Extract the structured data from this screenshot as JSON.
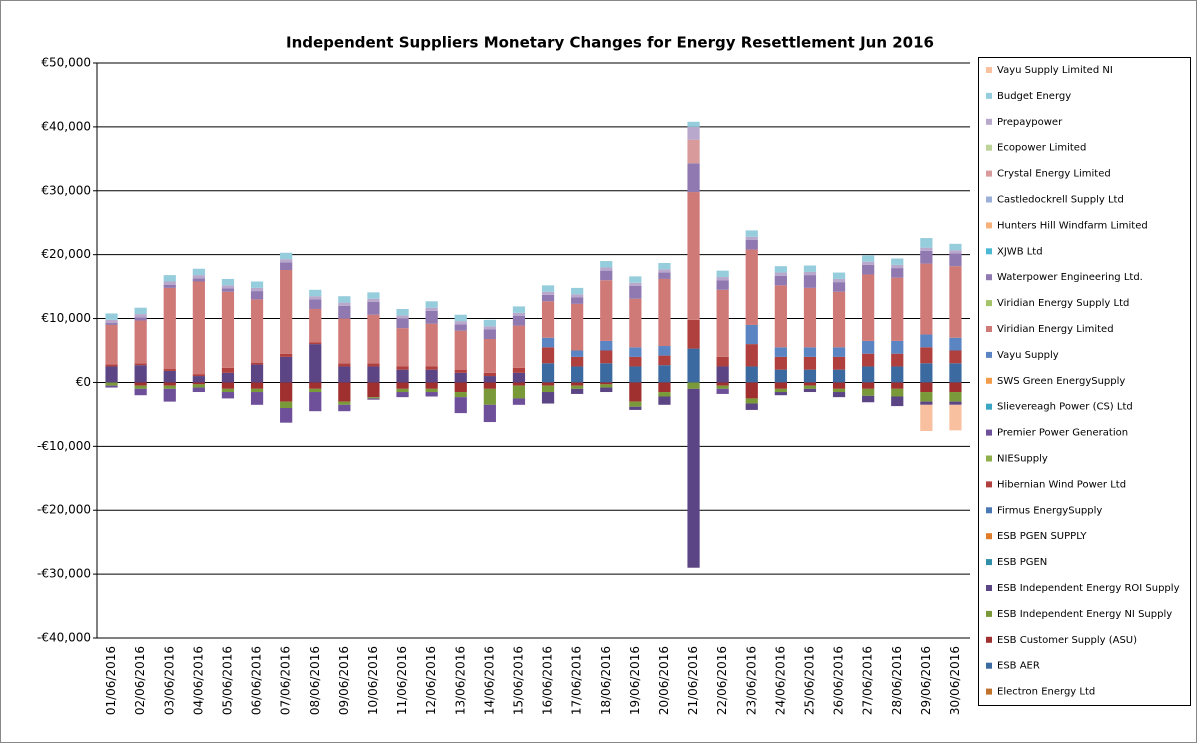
{
  "chart_data": {
    "type": "stacked_bar",
    "title": "Independent Suppliers Monetary Changes  for Energy Resettlement  Jun 2016",
    "categories": [
      "01/06/2016",
      "02/06/2016",
      "03/06/2016",
      "04/06/2016",
      "05/06/2016",
      "06/06/2016",
      "07/06/2016",
      "08/06/2016",
      "09/06/2016",
      "10/06/2016",
      "11/06/2016",
      "12/06/2016",
      "13/06/2016",
      "14/06/2016",
      "15/06/2016",
      "16/06/2016",
      "17/06/2016",
      "18/06/2016",
      "19/06/2016",
      "20/06/2016",
      "21/06/2016",
      "22/06/2016",
      "23/06/2016",
      "24/06/2016",
      "25/06/2016",
      "26/06/2016",
      "27/06/2016",
      "28/06/2016",
      "29/06/2016",
      "30/06/2016"
    ],
    "ylim": [
      -40000,
      50000
    ],
    "yticks": [
      {
        "value": -40000,
        "label": "-€40,000"
      },
      {
        "value": -30000,
        "label": "-€30,000"
      },
      {
        "value": -20000,
        "label": "-€20,000"
      },
      {
        "value": -10000,
        "label": "-€10,000"
      },
      {
        "value": 0,
        "label": "€0"
      },
      {
        "value": 10000,
        "label": "€10,000"
      },
      {
        "value": 20000,
        "label": "€20,000"
      },
      {
        "value": 30000,
        "label": "€30,000"
      },
      {
        "value": 40000,
        "label": "€40,000"
      },
      {
        "value": 50000,
        "label": "€50,000"
      }
    ],
    "grid": true,
    "legend": "right",
    "series": [
      {
        "name": "Electron Energy Ltd",
        "color": "#c0722b",
        "values": [
          0,
          0,
          0,
          0,
          0,
          0,
          0,
          0,
          0,
          0,
          0,
          0,
          0,
          0,
          0,
          0,
          0,
          0,
          0,
          0,
          0,
          0,
          0,
          0,
          0,
          0,
          0,
          0,
          0,
          0
        ]
      },
      {
        "name": "ESB AER",
        "color": "#3b6aa0",
        "values": [
          0,
          0,
          0,
          0,
          0,
          0,
          0,
          0,
          0,
          0,
          0,
          0,
          0,
          0,
          0,
          3000,
          2500,
          3000,
          2500,
          2700,
          5300,
          0,
          2500,
          2000,
          2000,
          2000,
          2500,
          2500,
          3000,
          3000
        ]
      },
      {
        "name": "ESB Customer Supply (ASU)",
        "color": "#a0302f",
        "values": [
          0,
          -500,
          -500,
          -300,
          -1000,
          -1000,
          -3000,
          -1000,
          -3000,
          -2300,
          -1000,
          -1000,
          -1500,
          -1000,
          -500,
          -500,
          -500,
          -300,
          -3000,
          -1500,
          0,
          -500,
          -2500,
          -1000,
          -500,
          -1000,
          -1000,
          -1000,
          -1500,
          -1500
        ]
      },
      {
        "name": "ESB Independent Energy NI Supply",
        "color": "#7a9a3a",
        "values": [
          -500,
          -500,
          -500,
          -500,
          -500,
          -500,
          -1000,
          -500,
          -500,
          -200,
          -500,
          -500,
          -800,
          -2500,
          -2000,
          -1000,
          -500,
          -500,
          -800,
          -700,
          -1000,
          -500,
          -800,
          -500,
          -500,
          -500,
          -1100,
          -1200,
          -1500,
          -1500
        ]
      },
      {
        "name": "ESB Independent Energy ROI Supply",
        "color": "#5b4585",
        "values": [
          2500,
          2700,
          1800,
          1000,
          1500,
          2800,
          4000,
          6000,
          2500,
          2500,
          2000,
          2000,
          1500,
          1000,
          1500,
          -1800,
          -800,
          -700,
          -500,
          -1300,
          -28000,
          2500,
          -1000,
          -500,
          -500,
          -800,
          -1000,
          -1500,
          -500,
          -500
        ]
      },
      {
        "name": "ESB PGEN",
        "color": "#2f8fa8",
        "values": [
          0,
          0,
          0,
          0,
          0,
          0,
          0,
          0,
          0,
          0,
          0,
          0,
          0,
          0,
          0,
          0,
          0,
          0,
          0,
          0,
          0,
          0,
          0,
          0,
          0,
          0,
          0,
          0,
          0,
          0
        ]
      },
      {
        "name": "ESB PGEN SUPPLY",
        "color": "#e07b27",
        "values": [
          0,
          0,
          0,
          0,
          0,
          0,
          0,
          0,
          0,
          0,
          0,
          0,
          0,
          0,
          0,
          0,
          0,
          0,
          0,
          0,
          0,
          0,
          0,
          0,
          0,
          0,
          0,
          0,
          0,
          0
        ]
      },
      {
        "name": "Firmus EnergySupply",
        "color": "#4a78b5",
        "values": [
          0,
          0,
          0,
          0,
          0,
          0,
          0,
          0,
          0,
          0,
          0,
          0,
          0,
          0,
          0,
          0,
          0,
          0,
          0,
          0,
          0,
          0,
          0,
          0,
          0,
          0,
          0,
          0,
          0,
          0
        ]
      },
      {
        "name": "Hibernian Wind Power Ltd",
        "color": "#b0403e",
        "values": [
          300,
          300,
          300,
          300,
          800,
          300,
          500,
          300,
          500,
          500,
          500,
          500,
          500,
          500,
          800,
          2500,
          1500,
          2000,
          1500,
          1500,
          4500,
          1500,
          3500,
          2000,
          2000,
          2000,
          2000,
          2000,
          2500,
          2000
        ]
      },
      {
        "name": "NIESupply",
        "color": "#8faf4a",
        "values": [
          0,
          0,
          0,
          0,
          0,
          0,
          0,
          0,
          0,
          0,
          0,
          0,
          0,
          0,
          0,
          0,
          0,
          0,
          0,
          0,
          0,
          0,
          0,
          0,
          0,
          0,
          0,
          0,
          0,
          0
        ]
      },
      {
        "name": "Premier Power Generation",
        "color": "#6e4f9a",
        "values": [
          -300,
          -1000,
          -2000,
          -700,
          -1000,
          -2000,
          -2300,
          -3000,
          -1000,
          -200,
          -800,
          -700,
          -2500,
          -2700,
          -1000,
          0,
          0,
          0,
          0,
          0,
          0,
          -800,
          0,
          0,
          0,
          0,
          0,
          0,
          0,
          0
        ]
      },
      {
        "name": "Slievereagh Power (CS) Ltd",
        "color": "#3aa6c4",
        "values": [
          0,
          0,
          0,
          0,
          0,
          0,
          0,
          0,
          0,
          0,
          0,
          0,
          0,
          0,
          0,
          0,
          0,
          0,
          0,
          0,
          0,
          0,
          0,
          0,
          0,
          0,
          0,
          0,
          0,
          0
        ]
      },
      {
        "name": "SWS Green EnergySupply",
        "color": "#f39c4a",
        "values": [
          0,
          0,
          0,
          0,
          0,
          0,
          0,
          0,
          0,
          0,
          0,
          0,
          0,
          0,
          0,
          0,
          0,
          0,
          0,
          0,
          0,
          0,
          0,
          0,
          0,
          0,
          0,
          0,
          0,
          0
        ]
      },
      {
        "name": "Vayu Supply",
        "color": "#5b84c2",
        "values": [
          0,
          0,
          0,
          0,
          0,
          0,
          0,
          0,
          0,
          0,
          0,
          0,
          0,
          0,
          0,
          1500,
          1000,
          1500,
          1500,
          1500,
          0,
          0,
          3000,
          1500,
          1500,
          1500,
          2000,
          2000,
          2000,
          2000
        ]
      },
      {
        "name": "Viridian Energy Limited",
        "color": "#d07a78",
        "values": [
          6200,
          6700,
          12700,
          14500,
          11900,
          9900,
          13100,
          5200,
          7000,
          7600,
          6000,
          6700,
          6100,
          5300,
          6600,
          5700,
          7300,
          9500,
          7600,
          10500,
          20000,
          10500,
          11800,
          9700,
          9300,
          8700,
          10400,
          9900,
          11100,
          11200
        ]
      },
      {
        "name": "Viridian Energy Supply Ltd",
        "color": "#a5c46a",
        "values": [
          0,
          0,
          0,
          0,
          0,
          0,
          0,
          0,
          0,
          0,
          0,
          0,
          0,
          0,
          0,
          0,
          0,
          0,
          0,
          0,
          0,
          0,
          0,
          0,
          0,
          0,
          0,
          0,
          0,
          0
        ]
      },
      {
        "name": "Waterpower Engineering Ltd.",
        "color": "#9079b0",
        "values": [
          300,
          500,
          500,
          500,
          500,
          1300,
          1200,
          1500,
          2000,
          2000,
          1500,
          2000,
          1000,
          1500,
          1500,
          1000,
          1000,
          1500,
          2000,
          1000,
          4500,
          1500,
          1500,
          1500,
          2000,
          1500,
          1500,
          1500,
          2000,
          2000
        ]
      },
      {
        "name": "XJWB Ltd",
        "color": "#4bb8d4",
        "values": [
          0,
          0,
          0,
          0,
          0,
          0,
          0,
          0,
          0,
          0,
          0,
          0,
          0,
          0,
          0,
          0,
          0,
          0,
          0,
          0,
          0,
          0,
          0,
          0,
          0,
          0,
          0,
          0,
          0,
          0
        ]
      },
      {
        "name": "Hunters Hill Windfarm Limited",
        "color": "#f7b07a",
        "values": [
          0,
          0,
          0,
          0,
          0,
          0,
          0,
          0,
          0,
          0,
          0,
          0,
          0,
          0,
          0,
          0,
          0,
          0,
          0,
          0,
          0,
          0,
          0,
          0,
          0,
          0,
          0,
          0,
          0,
          0
        ]
      },
      {
        "name": "Castledockrell Supply Ltd",
        "color": "#9bb0d8",
        "values": [
          0,
          0,
          0,
          0,
          0,
          0,
          0,
          0,
          0,
          0,
          0,
          0,
          0,
          0,
          0,
          0,
          0,
          0,
          0,
          0,
          0,
          0,
          0,
          0,
          0,
          0,
          0,
          0,
          0,
          0
        ]
      },
      {
        "name": "Crystal Energy Limited",
        "color": "#d89a9a",
        "values": [
          0,
          0,
          0,
          0,
          0,
          0,
          0,
          0,
          0,
          0,
          0,
          0,
          0,
          0,
          0,
          0,
          0,
          0,
          0,
          0,
          3700,
          0,
          0,
          0,
          0,
          0,
          0,
          0,
          0,
          0
        ]
      },
      {
        "name": "Ecopower Limited",
        "color": "#bcd39a",
        "values": [
          0,
          0,
          0,
          0,
          0,
          0,
          0,
          0,
          0,
          0,
          0,
          0,
          0,
          0,
          0,
          0,
          0,
          0,
          0,
          0,
          0,
          0,
          0,
          0,
          0,
          0,
          0,
          0,
          0,
          0
        ]
      },
      {
        "name": "Prepaypower",
        "color": "#b8a8cc",
        "values": [
          500,
          500,
          500,
          500,
          500,
          500,
          500,
          500,
          500,
          500,
          500,
          500,
          500,
          500,
          500,
          500,
          500,
          500,
          500,
          500,
          2000,
          500,
          500,
          500,
          500,
          500,
          500,
          500,
          500,
          500
        ]
      },
      {
        "name": "Budget Energy",
        "color": "#95cddc",
        "values": [
          1000,
          1000,
          1000,
          1000,
          1000,
          1000,
          1000,
          1000,
          1000,
          1000,
          1000,
          1000,
          1000,
          1000,
          1000,
          1000,
          1000,
          1000,
          1000,
          1000,
          800,
          1000,
          1000,
          1000,
          1000,
          1000,
          1000,
          1000,
          1500,
          1000
        ]
      },
      {
        "name": "Vayu Supply Limited NI",
        "color": "#f9c0a0",
        "values": [
          0,
          0,
          0,
          0,
          0,
          0,
          0,
          0,
          0,
          0,
          0,
          0,
          0,
          0,
          0,
          0,
          0,
          0,
          0,
          0,
          0,
          0,
          0,
          0,
          0,
          0,
          0,
          0,
          -4100,
          -4000
        ]
      }
    ]
  }
}
